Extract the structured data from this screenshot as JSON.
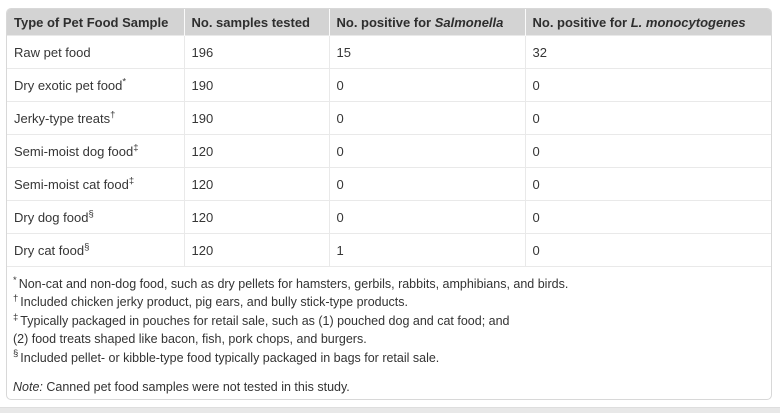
{
  "colors": {
    "header_background": "#d3d3d3",
    "row_divider": "#e9e9e9",
    "card_border": "#d8d8d8"
  },
  "table": {
    "header": {
      "col1": "Type of Pet Food Sample",
      "col2": "No. samples tested",
      "col3_prefix": "No. positive for ",
      "col3_species": "Salmonella",
      "col4_prefix": "No. positive for ",
      "col4_species": "L. monocytogenes"
    },
    "rows": [
      {
        "sample": "Raw pet food",
        "marker": "",
        "tested": "196",
        "salmonella": "15",
        "listeria": "32"
      },
      {
        "sample": "Dry exotic pet food",
        "marker": "*",
        "tested": "190",
        "salmonella": "0",
        "listeria": "0"
      },
      {
        "sample": "Jerky-type treats",
        "marker": "†",
        "tested": "190",
        "salmonella": "0",
        "listeria": "0"
      },
      {
        "sample": "Semi-moist dog food",
        "marker": "‡",
        "tested": "120",
        "salmonella": "0",
        "listeria": "0"
      },
      {
        "sample": "Semi-moist cat food",
        "marker": "‡",
        "tested": "120",
        "salmonella": "0",
        "listeria": "0"
      },
      {
        "sample": "Dry dog food",
        "marker": "§",
        "tested": "120",
        "salmonella": "0",
        "listeria": "0"
      },
      {
        "sample": "Dry cat food",
        "marker": "§",
        "tested": "120",
        "salmonella": "1",
        "listeria": "0"
      }
    ]
  },
  "footnotes": [
    {
      "marker": "*",
      "text": "Non-cat and non-dog food, such as dry pellets for hamsters, gerbils, rabbits, amphibians, and birds."
    },
    {
      "marker": "†",
      "text": "Included chicken jerky product, pig ears, and bully stick-type products."
    },
    {
      "marker": "‡",
      "text": "Typically packaged in pouches for retail sale, such as (1) pouched dog and cat food; and"
    },
    {
      "marker": "",
      "text": "(2) food treats shaped like bacon, fish, pork chops, and burgers."
    },
    {
      "marker": "§",
      "text": "Included pellet- or kibble-type food typically packaged in bags for retail sale."
    }
  ],
  "note": {
    "label": "Note:",
    "text": " Canned pet food samples were not tested in this study."
  }
}
